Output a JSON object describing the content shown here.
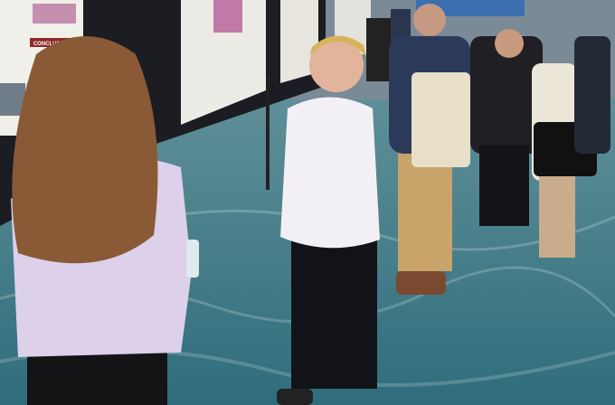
{
  "poster": {
    "heading": "CONCLUSIONS"
  }
}
